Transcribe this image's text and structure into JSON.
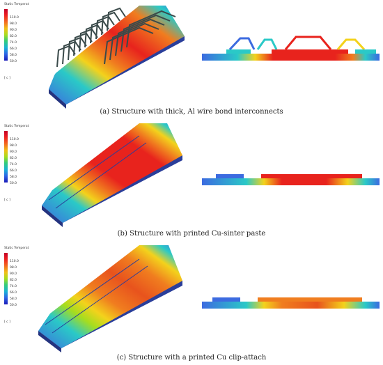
{
  "legend": {
    "title": "Static Temperat",
    "ticks": [
      "110.0",
      "98.0",
      "90.0",
      "82.0",
      "74.0",
      "66.0",
      "58.0",
      "50.0"
    ],
    "unit": "[ c ]"
  },
  "colors": {
    "hot": "#e8231d",
    "warm": "#f07d1f",
    "mid": "#f3d21c",
    "cool": "#2ac9c7",
    "cold": "#3c6be0",
    "wire": "#3a4a4a"
  },
  "panels": [
    {
      "caption": "(a) Structure with thick, Al wire bond interconnects"
    },
    {
      "caption": "(b) Structure with printed Cu-sinter paste"
    },
    {
      "caption": "(c) Structure with a printed Cu clip-attach"
    }
  ]
}
